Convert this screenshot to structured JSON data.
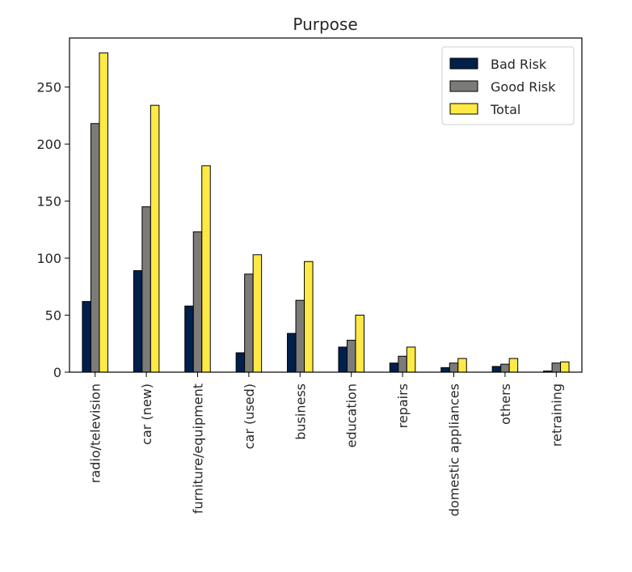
{
  "chart_data": {
    "type": "bar",
    "title": "Purpose",
    "xlabel": "",
    "ylabel": "",
    "ylim": [
      0,
      293
    ],
    "yticks": [
      0,
      50,
      100,
      150,
      200,
      250
    ],
    "categories": [
      "radio/television",
      "car (new)",
      "furniture/equipment",
      "car (used)",
      "business",
      "education",
      "repairs",
      "domestic appliances",
      "others",
      "retraining"
    ],
    "series": [
      {
        "name": "Bad Risk",
        "color": "#00204c",
        "values": [
          62,
          89,
          58,
          17,
          34,
          22,
          8,
          4,
          5,
          1
        ]
      },
      {
        "name": "Good Risk",
        "color": "#7c7b78",
        "values": [
          218,
          145,
          123,
          86,
          63,
          28,
          14,
          8,
          7,
          8
        ]
      },
      {
        "name": "Total",
        "color": "#ffe945",
        "values": [
          280,
          234,
          181,
          103,
          97,
          50,
          22,
          12,
          12,
          9
        ]
      }
    ],
    "legend_position": "top-right",
    "grid": false
  }
}
